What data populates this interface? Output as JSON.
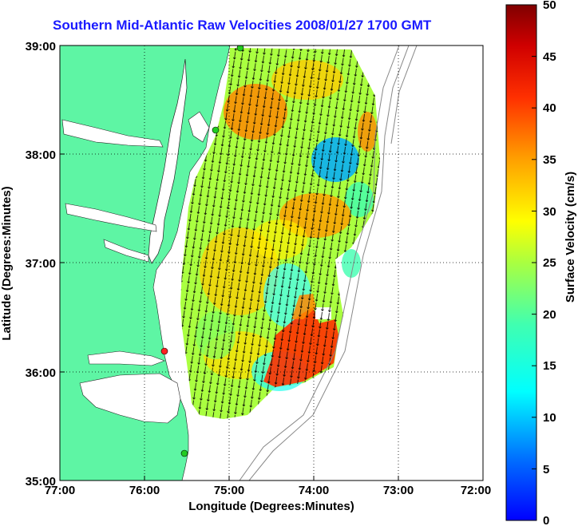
{
  "title": "Southern Mid-Atlantic Raw Velocities 2008/01/27 1700 GMT",
  "x_axis": {
    "label": "Longitude (Degrees:Minutes)",
    "ticks": [
      "77:00",
      "76:00",
      "75:00",
      "74:00",
      "73:00",
      "72:00"
    ]
  },
  "y_axis": {
    "label": "Latitude (Degrees:Minutes)",
    "ticks": [
      "39:00",
      "38:00",
      "37:00",
      "36:00",
      "35:00"
    ]
  },
  "colorbar": {
    "label": "Surface Velocity (cm/s)",
    "ticks": [
      "50",
      "45",
      "40",
      "35",
      "30",
      "25",
      "20",
      "15",
      "10",
      "5",
      "0"
    ],
    "range": [
      0,
      50
    ],
    "colormap": "jet"
  },
  "colors": {
    "land": "#5ef5a4",
    "title": "#1a1aff",
    "station_green": "#22cc22",
    "station_red": "#ff2222"
  },
  "chart_data": {
    "type": "heatmap",
    "description_of_axes": "longitude vs latitude",
    "xlim": [
      -77.0,
      -72.0
    ],
    "ylim": [
      35.0,
      39.0
    ],
    "grid": true,
    "stations": [
      {
        "lon": -74.87,
        "lat": 38.98,
        "color": "green"
      },
      {
        "lon": -75.15,
        "lat": 38.2,
        "color": "green"
      },
      {
        "lon": -75.75,
        "lat": 36.15,
        "color": "red"
      },
      {
        "lon": -75.5,
        "lat": 35.25,
        "color": "green"
      }
    ]
  }
}
